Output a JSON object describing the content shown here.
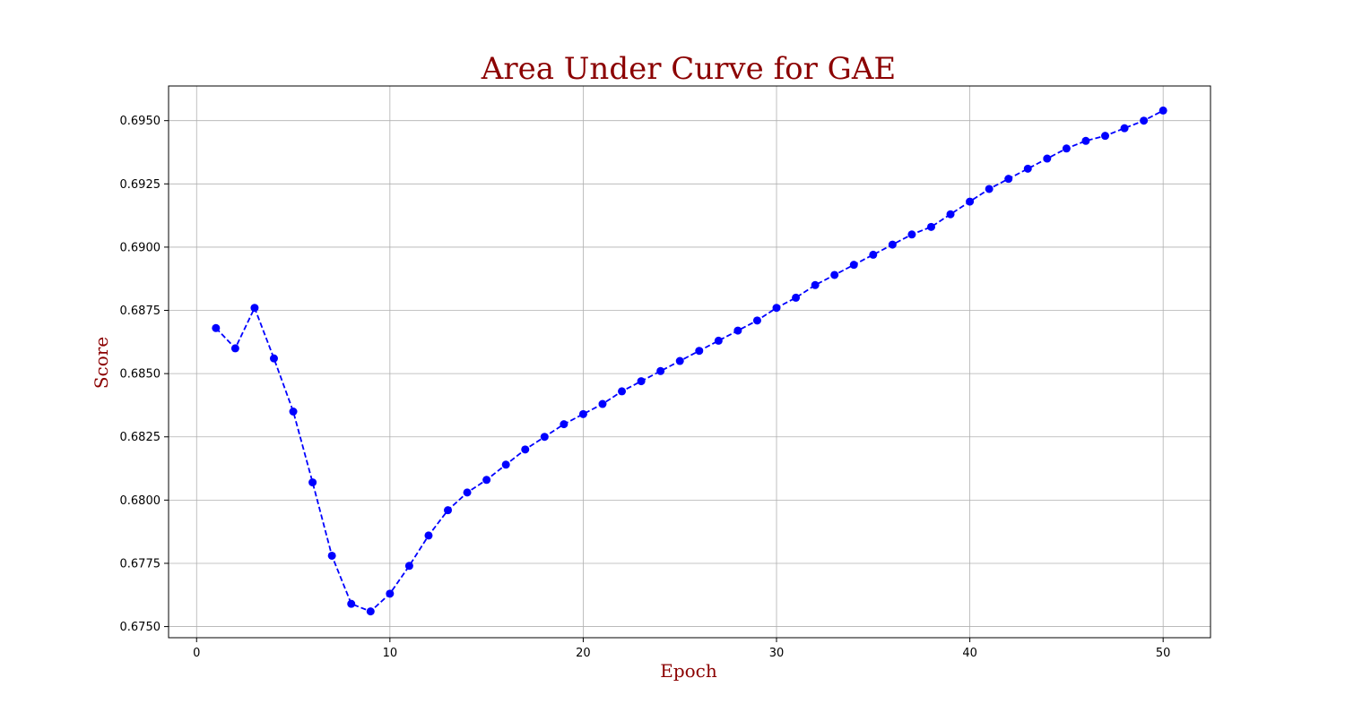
{
  "colors": {
    "title": "#8b0000",
    "axis_label": "#8b0000",
    "series": "#0000ff",
    "grid": "#b0b0b0",
    "axes": "#000000",
    "background": "#ffffff"
  },
  "chart_data": {
    "type": "line",
    "title": "Area Under Curve for GAE",
    "xlabel": "Epoch",
    "ylabel": "Score",
    "xlim": [
      -1.45,
      52.45
    ],
    "ylim": [
      0.67456,
      0.69637
    ],
    "xticks": [
      0,
      10,
      20,
      30,
      40,
      50
    ],
    "yticks": [
      0.675,
      0.6775,
      0.68,
      0.6825,
      0.685,
      0.6875,
      0.69,
      0.6925,
      0.695
    ],
    "xtick_labels": [
      "0",
      "10",
      "20",
      "30",
      "40",
      "50"
    ],
    "ytick_labels": [
      "0.6750",
      "0.6775",
      "0.6800",
      "0.6825",
      "0.6850",
      "0.6875",
      "0.6900",
      "0.6925",
      "0.6950"
    ],
    "grid": true,
    "line_style": "dashed",
    "marker": "circle",
    "series": [
      {
        "x": [
          1,
          2,
          3,
          4,
          5,
          6,
          7,
          8,
          9,
          10,
          11,
          12,
          13,
          14,
          15,
          16,
          17,
          18,
          19,
          20,
          21,
          22,
          23,
          24,
          25,
          26,
          27,
          28,
          29,
          30,
          31,
          32,
          33,
          34,
          35,
          36,
          37,
          38,
          39,
          40,
          41,
          42,
          43,
          44,
          45,
          46,
          47,
          48,
          49,
          50
        ],
        "values": [
          0.6868,
          0.686,
          0.6876,
          0.6856,
          0.6835,
          0.6807,
          0.6778,
          0.6759,
          0.6756,
          0.6763,
          0.6774,
          0.6786,
          0.6796,
          0.6803,
          0.6808,
          0.6814,
          0.682,
          0.6825,
          0.683,
          0.6834,
          0.6838,
          0.6843,
          0.6847,
          0.6851,
          0.6855,
          0.6859,
          0.6863,
          0.6867,
          0.6871,
          0.6876,
          0.688,
          0.6885,
          0.6889,
          0.6893,
          0.6897,
          0.6901,
          0.6905,
          0.6908,
          0.6913,
          0.6918,
          0.6923,
          0.6927,
          0.6931,
          0.6935,
          0.6939,
          0.6942,
          0.6944,
          0.6947,
          0.695,
          0.6954
        ]
      }
    ]
  }
}
